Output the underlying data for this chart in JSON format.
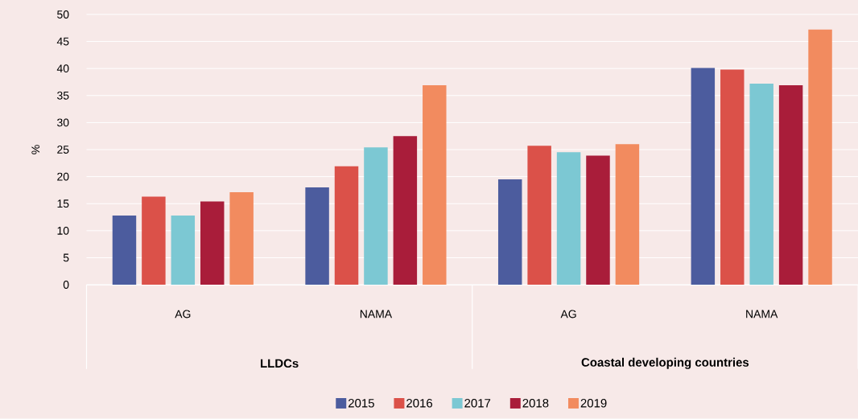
{
  "chart_data": {
    "type": "bar",
    "ylabel": "%",
    "categories": [
      "AG",
      "NAMA",
      "AG",
      "NAMA"
    ],
    "annotations": [
      "LLDCs",
      "Coastal developing countries"
    ],
    "series": [
      {
        "name": "2015",
        "color": "#4c5c9e",
        "values": [
          12.8,
          18.0,
          19.5,
          40.1
        ]
      },
      {
        "name": "2016",
        "color": "#db5149",
        "values": [
          16.3,
          21.9,
          25.7,
          39.8
        ]
      },
      {
        "name": "2017",
        "color": "#7cc8d3",
        "values": [
          12.8,
          25.4,
          24.5,
          37.2
        ]
      },
      {
        "name": "2018",
        "color": "#a91d3a",
        "values": [
          15.4,
          27.5,
          23.9,
          36.9
        ]
      },
      {
        "name": "2019",
        "color": "#f28b5f",
        "values": [
          17.1,
          36.9,
          26.0,
          47.2
        ]
      }
    ],
    "ylim": [
      0,
      50
    ],
    "yticks": [
      0,
      5,
      10,
      15,
      20,
      25,
      30,
      35,
      40,
      45,
      50
    ],
    "grid": "y",
    "legend": "bottom"
  }
}
